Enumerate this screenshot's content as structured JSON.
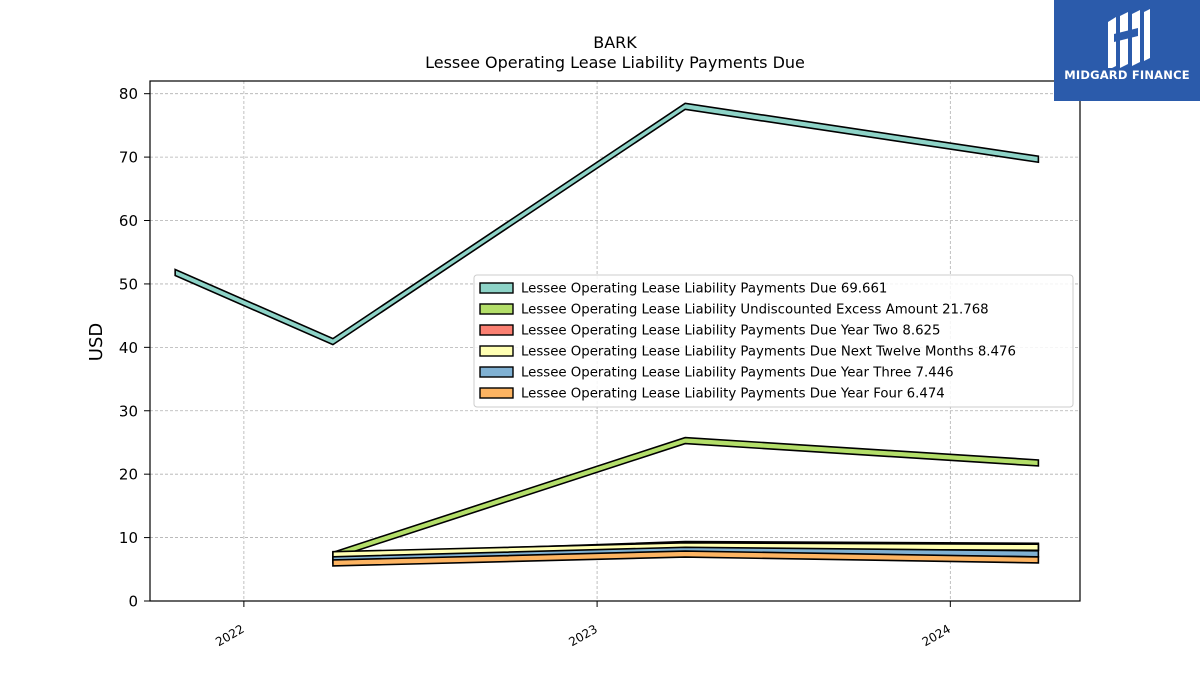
{
  "chart_data": {
    "type": "line",
    "title": "BARK",
    "subtitle": "Lessee Operating Lease Liability Payments Due",
    "ylabel": "USD",
    "xlabel": "",
    "ylim": [
      0,
      82
    ],
    "xlim": [
      "2021-09-26",
      "2024-05-14"
    ],
    "yticks": [
      0,
      10,
      20,
      30,
      40,
      50,
      60,
      70,
      80
    ],
    "xticks": [
      {
        "date": "2022-01-01",
        "label": "2022"
      },
      {
        "date": "2023-01-01",
        "label": "2023"
      },
      {
        "date": "2024-01-01",
        "label": "2024"
      }
    ],
    "grid": true,
    "legend_position": "center-right",
    "series": [
      {
        "name": "Lessee Operating Lease Liability Payments Due",
        "legend_value": "69.661",
        "color": "#8dd3c7",
        "points": [
          {
            "x": "2021-10-22",
            "y": 51.8
          },
          {
            "x": "2022-04-03",
            "y": 40.9
          },
          {
            "x": "2023-04-02",
            "y": 78.0
          },
          {
            "x": "2024-04-01",
            "y": 69.661
          }
        ]
      },
      {
        "name": "Lessee Operating Lease Liability Undiscounted Excess Amount",
        "legend_value": "21.768",
        "color": "#b3de69",
        "points": [
          {
            "x": "2022-04-03",
            "y": 7.2
          },
          {
            "x": "2023-04-02",
            "y": 25.3
          },
          {
            "x": "2024-04-01",
            "y": 21.768
          }
        ]
      },
      {
        "name": "Lessee Operating Lease Liability Payments Due Year Two",
        "legend_value": "8.625",
        "color": "#fb8072",
        "points": [
          {
            "x": "2022-04-03",
            "y": 7.0
          },
          {
            "x": "2023-04-02",
            "y": 8.9
          },
          {
            "x": "2024-04-01",
            "y": 8.625
          }
        ]
      },
      {
        "name": "Lessee Operating Lease Liability Payments Due Next Twelve Months",
        "legend_value": "8.476",
        "color": "#ffffb3",
        "points": [
          {
            "x": "2022-04-03",
            "y": 7.3
          },
          {
            "x": "2023-04-02",
            "y": 8.7
          },
          {
            "x": "2024-04-01",
            "y": 8.476
          }
        ]
      },
      {
        "name": "Lessee Operating Lease Liability Payments Due Year Three",
        "legend_value": "7.446",
        "color": "#80b1d3",
        "points": [
          {
            "x": "2022-04-03",
            "y": 6.5
          },
          {
            "x": "2023-04-02",
            "y": 8.0
          },
          {
            "x": "2024-04-01",
            "y": 7.446
          }
        ]
      },
      {
        "name": "Lessee Operating Lease Liability Payments Due Year Four",
        "legend_value": "6.474",
        "color": "#fdb462",
        "points": [
          {
            "x": "2022-04-03",
            "y": 6.0
          },
          {
            "x": "2023-04-02",
            "y": 7.4
          },
          {
            "x": "2024-04-01",
            "y": 6.474
          }
        ]
      }
    ]
  },
  "brand": {
    "name": "MIDGARD FINANCE",
    "logo_icon": "mf-monogram-icon",
    "background": "#2b5bab"
  }
}
